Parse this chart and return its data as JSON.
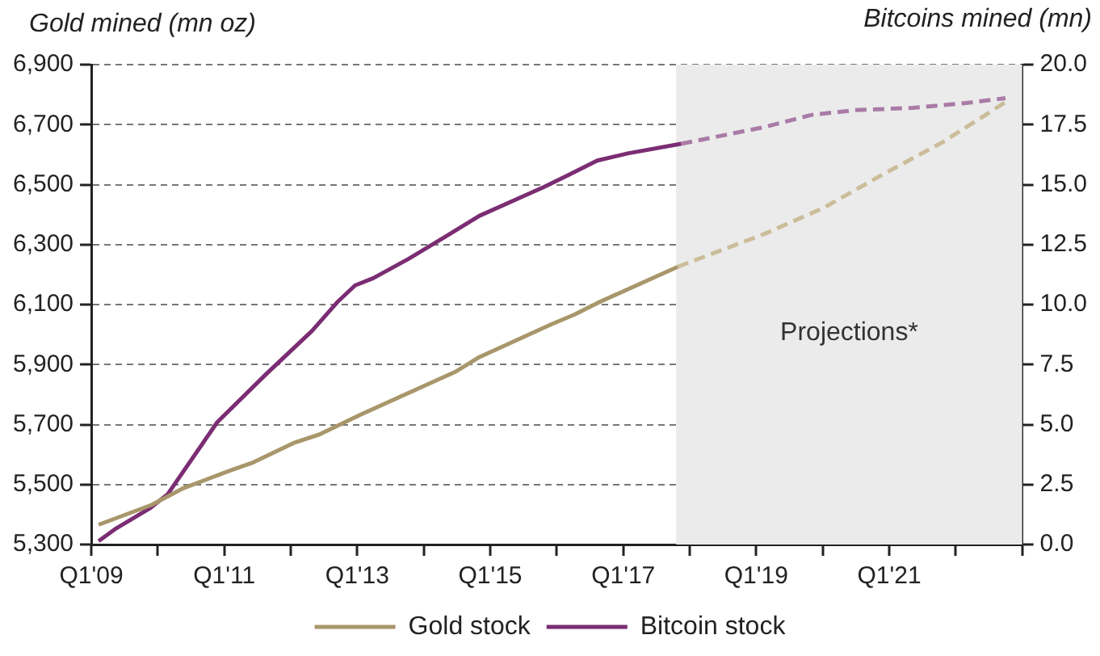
{
  "chart_data": {
    "type": "line",
    "ylabel": "Gold mined (mn oz)",
    "y2label": "Bitcoins mined (mn)",
    "xlim": [
      "2009-01",
      "2023-01"
    ],
    "xticks": [
      {
        "value": "2009-01",
        "label": "Q1'09"
      },
      {
        "value": "2010-01",
        "label": null
      },
      {
        "value": "2011-01",
        "label": "Q1'11"
      },
      {
        "value": "2012-01",
        "label": null
      },
      {
        "value": "2013-01",
        "label": "Q1'13"
      },
      {
        "value": "2014-01",
        "label": null
      },
      {
        "value": "2015-01",
        "label": "Q1'15"
      },
      {
        "value": "2016-01",
        "label": null
      },
      {
        "value": "2017-01",
        "label": "Q1'17"
      },
      {
        "value": "2018-01",
        "label": null
      },
      {
        "value": "2019-01",
        "label": "Q1'19"
      },
      {
        "value": "2020-01",
        "label": null
      },
      {
        "value": "2021-01",
        "label": "Q1'21"
      },
      {
        "value": "2022-01",
        "label": null
      },
      {
        "value": "2023-01",
        "label": null
      }
    ],
    "ylim": [
      5300,
      6900
    ],
    "yticks": [
      {
        "value": 5300,
        "label": "5,300"
      },
      {
        "value": 5500,
        "label": "5,500"
      },
      {
        "value": 5700,
        "label": "5,700"
      },
      {
        "value": 5900,
        "label": "5,900"
      },
      {
        "value": 6100,
        "label": "6,100"
      },
      {
        "value": 6300,
        "label": "6,300"
      },
      {
        "value": 6500,
        "label": "6,500"
      },
      {
        "value": 6700,
        "label": "6,700"
      },
      {
        "value": 6900,
        "label": "6,900"
      }
    ],
    "y2lim": [
      0,
      20
    ],
    "y2ticks": [
      {
        "value": 0,
        "label": "0.0"
      },
      {
        "value": 2.5,
        "label": "2.5"
      },
      {
        "value": 5,
        "label": "5.0"
      },
      {
        "value": 7.5,
        "label": "7.5"
      },
      {
        "value": 10,
        "label": "10.0"
      },
      {
        "value": 12.5,
        "label": "12.5"
      },
      {
        "value": 15,
        "label": "15.0"
      },
      {
        "value": 17.5,
        "label": "17.5"
      },
      {
        "value": 20,
        "label": "20.0"
      }
    ],
    "grid": "y",
    "legend": "bottom",
    "bands": [
      {
        "axis": "x",
        "from": "2017-10-19",
        "to": "2023-01",
        "label": "Projections*",
        "color": "#ebebeb"
      }
    ],
    "series": [
      {
        "name": "Gold stock",
        "color": "#a8976b",
        "line_style": "solid",
        "x": [
          "2009-02-10",
          "2009-11-28",
          "2010-05-15",
          "2011-02-03",
          "2011-06-10",
          "2012-01-23",
          "2012-06-07",
          "2013-01-19",
          "2013-12-06",
          "2014-06-21",
          "2014-11-03",
          "2015-12-02",
          "2016-04-09",
          "2016-08-11",
          "2017-10-27"
        ],
        "values": [
          5366,
          5432,
          5486,
          5547,
          5574,
          5640,
          5667,
          5733,
          5821,
          5875,
          5925,
          6034,
          6067,
          6105,
          6226
        ]
      },
      {
        "color": "#cbbd9a",
        "line_style": "dashed",
        "x": [
          "2017-10-27",
          "2019-02-17",
          "2020-01-08",
          "2020-11-24",
          "2021-10-23",
          "2022-10-12"
        ],
        "values": [
          6226,
          6336,
          6423,
          6533,
          6642,
          6779
        ]
      },
      {
        "name": "Bitcoin stock",
        "color": "#7b2d73",
        "line_style": "solid",
        "axis": "y2",
        "x": [
          "2009-02-10",
          "2009-05-19",
          "2009-11-17",
          "2010-02-25",
          "2010-11-24",
          "2011-08-19",
          "2012-04-27",
          "2012-09-13",
          "2012-12-20",
          "2013-03-29",
          "2013-10-08",
          "2014-04-23",
          "2014-11-03",
          "2015-10-23",
          "2016-03-07",
          "2016-08-11",
          "2017-01-26",
          "2017-11-14"
        ],
        "values": [
          0.14,
          0.68,
          1.5,
          2.1,
          5.1,
          7.1,
          8.9,
          10.1,
          10.8,
          11.1,
          11.9,
          12.8,
          13.7,
          14.9,
          15.4,
          16,
          16.3,
          16.7
        ]
      },
      {
        "color": "#a97ba6",
        "line_style": "dashed",
        "axis": "y2",
        "x": [
          "2017-11-14",
          "2019-02-17",
          "2019-10-30",
          "2020-06-21",
          "2021-05-11",
          "2022-02-28",
          "2022-10-01"
        ],
        "values": [
          16.7,
          17.4,
          17.9,
          18.1,
          18.2,
          18.4,
          18.6
        ]
      }
    ]
  }
}
